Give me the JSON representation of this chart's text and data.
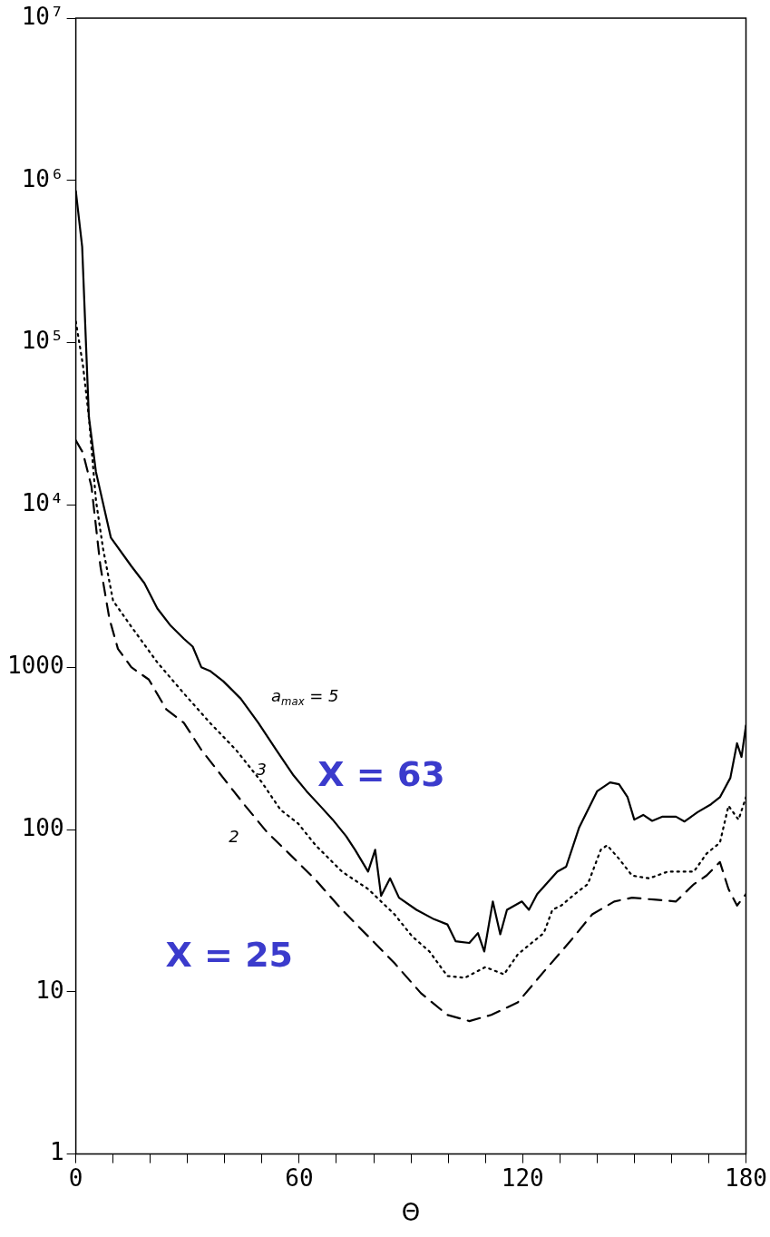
{
  "chart_data": {
    "type": "line",
    "xlabel": "Θ",
    "xlim": [
      0,
      180
    ],
    "xticks": [
      0,
      {
        "value": 10,
        "label": null
      },
      {
        "value": 20,
        "label": null
      },
      {
        "value": 30,
        "label": null
      },
      {
        "value": 40,
        "label": null
      },
      {
        "value": 50,
        "label": null
      },
      60,
      {
        "value": 70,
        "label": null
      },
      {
        "value": 80,
        "label": null
      },
      {
        "value": 90,
        "label": null
      },
      {
        "value": 100,
        "label": null
      },
      {
        "value": 110,
        "label": null
      },
      120,
      {
        "value": 130,
        "label": null
      },
      {
        "value": 140,
        "label": null
      },
      {
        "value": 150,
        "label": null
      },
      {
        "value": 160,
        "label": null
      },
      {
        "value": 170,
        "label": null
      },
      180
    ],
    "ylim": [
      1,
      10000000
    ],
    "yticks": [
      1,
      10,
      100,
      1000,
      {
        "value": 10000,
        "label": "10⁴"
      },
      {
        "value": 100000,
        "label": "10⁵"
      },
      {
        "value": 1000000,
        "label": "10⁶"
      },
      {
        "value": 10000000,
        "label": "10⁷"
      }
    ],
    "log": "y",
    "grid": false,
    "legend": false,
    "marker": "none",
    "series": [
      {
        "color": "#000000",
        "line_style": "solid",
        "x": [
          0,
          1.7,
          3.5,
          5.4,
          9.4,
          14.9,
          18.4,
          21.9,
          25.5,
          29,
          31.4,
          33.7,
          36,
          39.6,
          44.3,
          49,
          53.8,
          58.5,
          62,
          65.6,
          69,
          72.6,
          75,
          78.5,
          80.4,
          82,
          84.4,
          86.8,
          91.5,
          96.2,
          99.8,
          102,
          105.7,
          108,
          109.7,
          112,
          114,
          115.8,
          119.8,
          121.7,
          123.9,
          129.3,
          131.7,
          135.2,
          140,
          143.5,
          145.9,
          148.2,
          150,
          152.4,
          154.8,
          157.6,
          161.2,
          163.5,
          167,
          170.6,
          173,
          175.8,
          177.6,
          178.8,
          180
        ],
        "values": [
          860000,
          390000,
          35000,
          16000,
          6300,
          4200,
          3300,
          2300,
          1800,
          1500,
          1340,
          1000,
          950,
          820,
          640,
          455,
          310,
          215,
          172,
          140,
          115,
          91,
          75,
          55,
          75,
          39,
          50,
          38,
          32,
          28,
          26,
          20.5,
          20,
          23,
          17.7,
          36,
          22.6,
          32,
          36,
          32,
          40,
          55,
          59,
          103,
          172,
          195,
          190,
          158,
          115,
          123,
          113,
          120,
          120,
          112,
          128,
          143,
          158,
          208,
          340,
          280,
          437
        ]
      },
      {
        "color": "#000000",
        "line_style": "dotted",
        "x": [
          0,
          1.9,
          3.5,
          5.4,
          7.3,
          10,
          14.9,
          21.9,
          29,
          36,
          43,
          50,
          55,
          59.7,
          64.4,
          71.5,
          78.5,
          85.6,
          90.3,
          95,
          99.8,
          104.5,
          110,
          115,
          118.7,
          123,
          125.7,
          128,
          130.4,
          134,
          137.5,
          141,
          142.7,
          145.9,
          149.4,
          154,
          159,
          166,
          169.4,
          173,
          175.3,
          178,
          180
        ],
        "values": [
          135000,
          73000,
          35000,
          10700,
          5400,
          2570,
          1780,
          1070,
          690,
          455,
          310,
          195,
          132,
          109,
          80,
          55,
          43,
          30,
          22,
          17.7,
          12.5,
          12.2,
          14.2,
          12.8,
          17,
          20.5,
          23,
          32,
          34,
          40,
          46,
          75,
          80,
          66,
          52,
          50,
          55,
          55,
          71,
          83,
          140,
          115,
          158
        ]
      },
      {
        "color": "#000000",
        "line_style": "dashed",
        "x": [
          0,
          1.9,
          4.2,
          6.6,
          9,
          11.3,
          14.9,
          19.6,
          24.3,
          29,
          33.7,
          39.6,
          45.5,
          51.4,
          57.3,
          64.4,
          71.5,
          78.5,
          85.6,
          92.7,
          99.8,
          105.7,
          111.6,
          118.7,
          125.7,
          132.8,
          138.7,
          144.6,
          149.4,
          155.2,
          161.2,
          166,
          169.4,
          173,
          175.3,
          177.6,
          180
        ],
        "values": [
          25000,
          21000,
          13000,
          4200,
          2000,
          1300,
          1000,
          840,
          550,
          455,
          310,
          208,
          140,
          96,
          71,
          49,
          32,
          22,
          15,
          9.8,
          7.2,
          6.6,
          7.2,
          8.6,
          13.3,
          20.5,
          30,
          36,
          38,
          37,
          36,
          46,
          52,
          63,
          43,
          34,
          40
        ]
      }
    ],
    "annotations": [
      "a$_{max}$ = 5",
      "3",
      "2",
      "X = 63",
      "X = 25"
    ]
  }
}
